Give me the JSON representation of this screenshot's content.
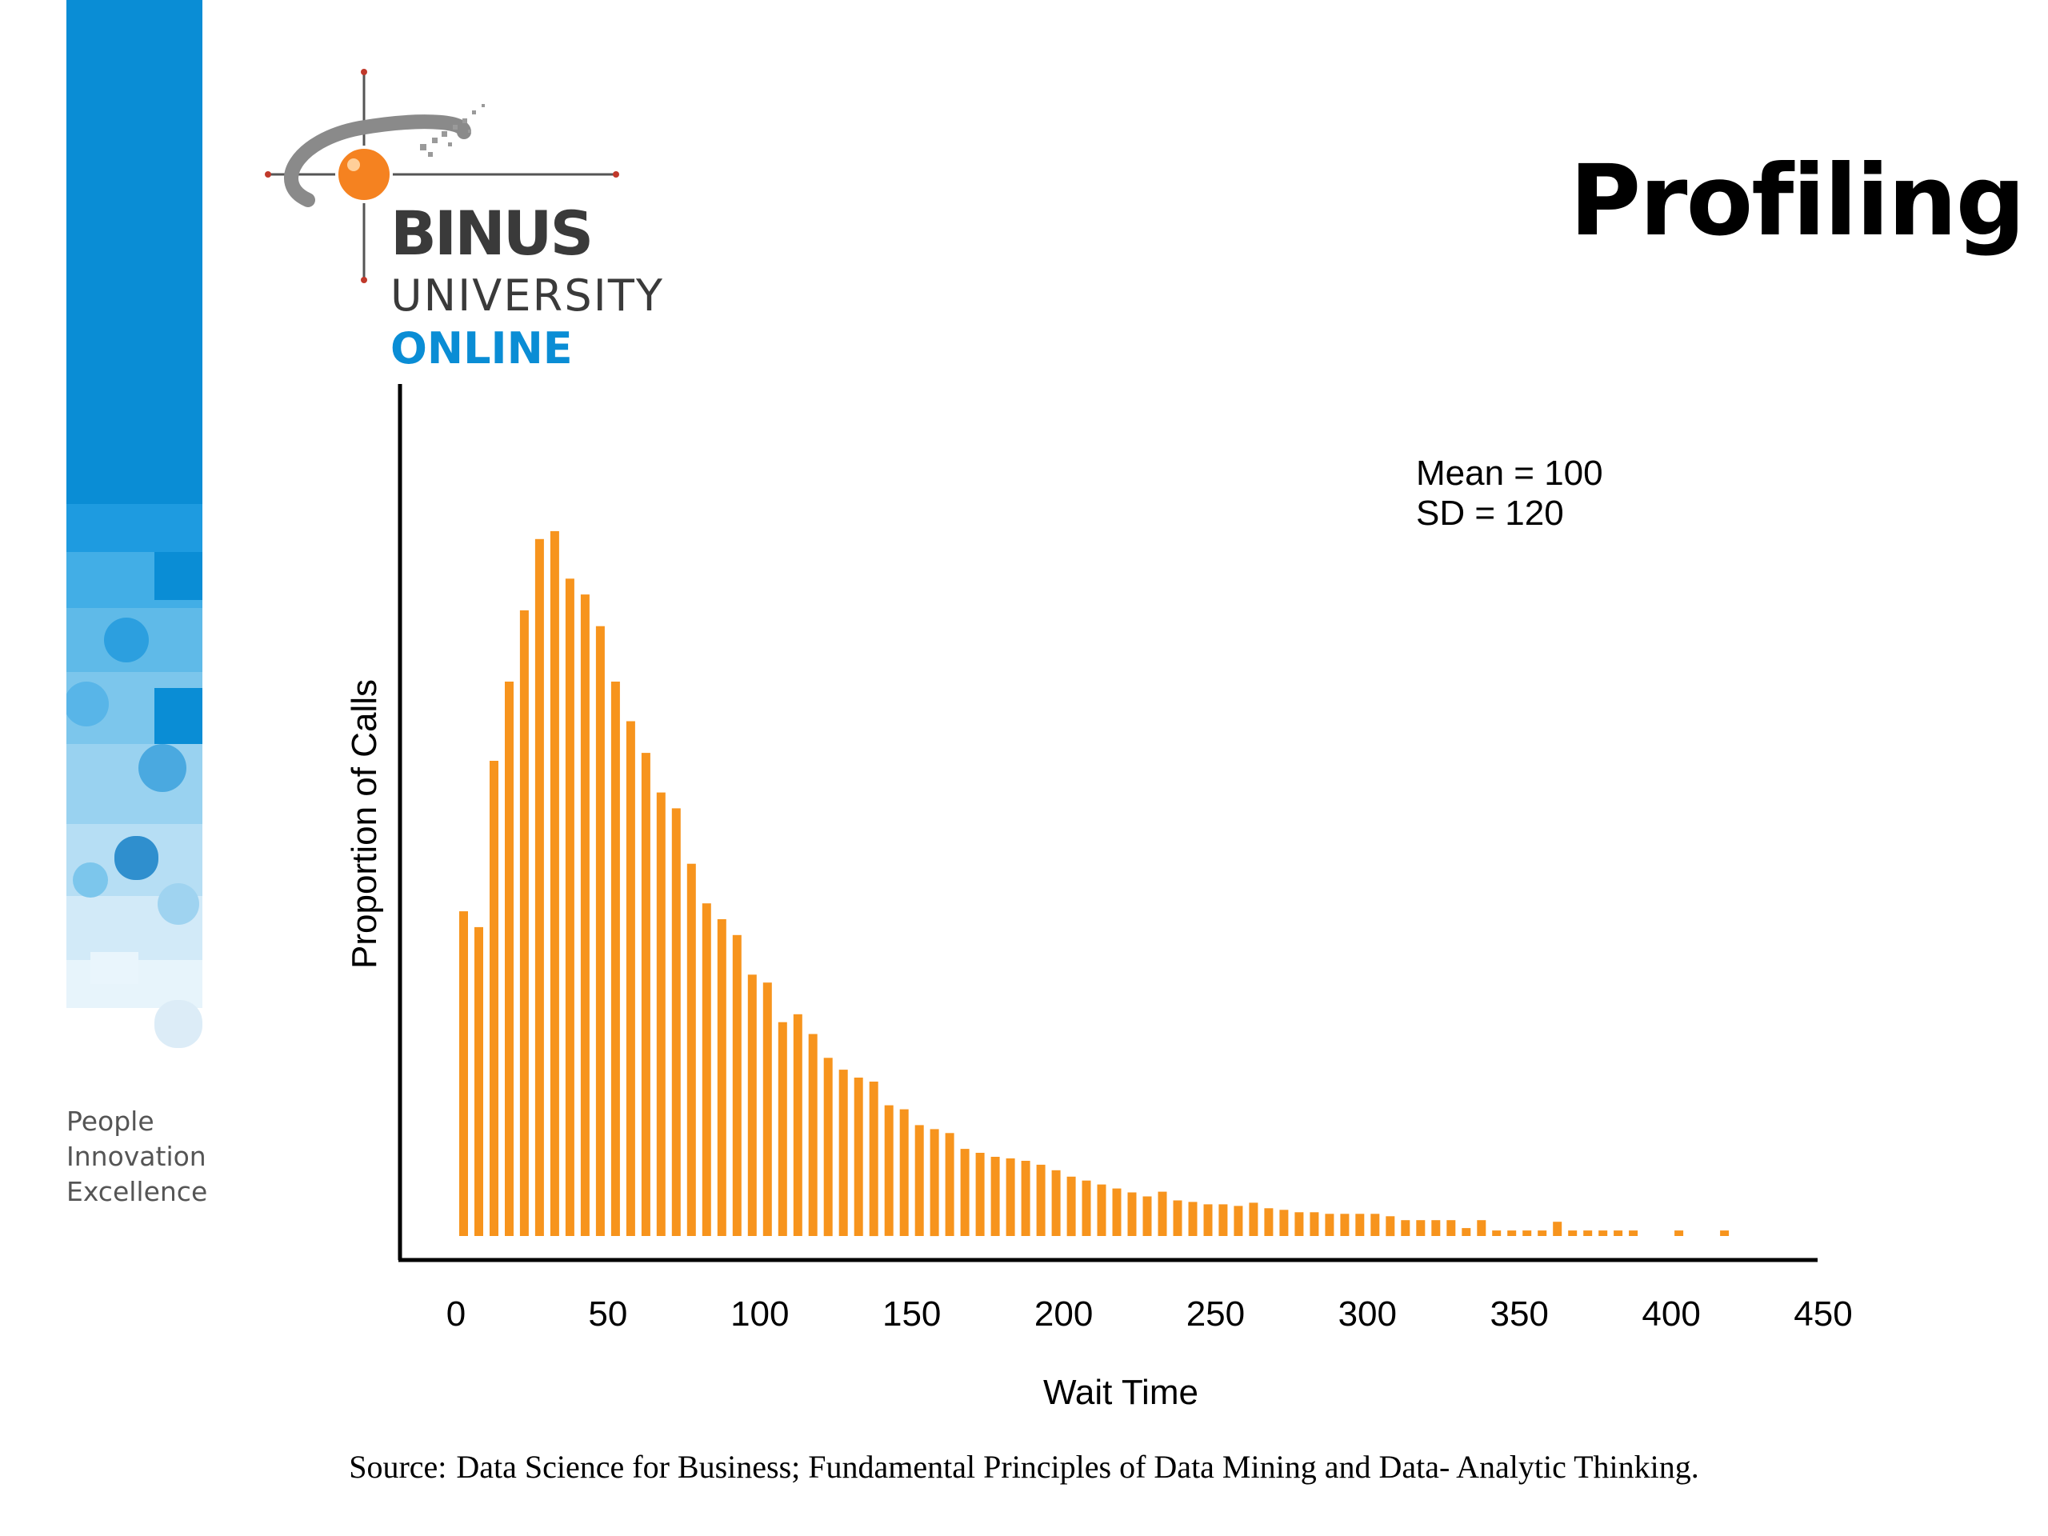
{
  "slide": {
    "title": "Profiling",
    "logo": {
      "line1": "BINUS",
      "line2": "UNIVERSITY",
      "line3": "ONLINE"
    },
    "tagline": [
      "People",
      "Innovation",
      "Excellence"
    ],
    "source_label": "Source:",
    "source_text": "Data Science for Business; Fundamental Principles of Data Mining and Data- Analytic Thinking.",
    "colors": {
      "brand_blue": "#0a8dd5",
      "bar_orange": "#f7941d",
      "logo_gray": "#3a3a3a",
      "logo_orange": "#f58220"
    }
  },
  "chart_data": {
    "type": "bar",
    "xlabel": "Wait Time",
    "ylabel": "Proportion of Calls",
    "annotation": [
      "Mean = 100",
      "SD = 120"
    ],
    "xlim": [
      0,
      450
    ],
    "xticks": [
      0,
      50,
      100,
      150,
      200,
      250,
      300,
      350,
      400,
      450
    ],
    "ylim": [
      0,
      1
    ],
    "grid": false,
    "legend": "none",
    "x": [
      2.5,
      7.5,
      12.5,
      17.5,
      22.5,
      27.5,
      32.5,
      37.5,
      42.5,
      47.5,
      52.5,
      57.5,
      62.5,
      67.5,
      72.5,
      77.5,
      82.5,
      87.5,
      92.5,
      97.5,
      102.5,
      107.5,
      112.5,
      117.5,
      122.5,
      127.5,
      132.5,
      137.5,
      142.5,
      147.5,
      152.5,
      157.5,
      162.5,
      167.5,
      172.5,
      177.5,
      182.5,
      187.5,
      192.5,
      197.5,
      202.5,
      207.5,
      212.5,
      217.5,
      222.5,
      227.5,
      232.5,
      237.5,
      242.5,
      247.5,
      252.5,
      257.5,
      262.5,
      267.5,
      272.5,
      277.5,
      282.5,
      287.5,
      292.5,
      297.5,
      302.5,
      307.5,
      312.5,
      317.5,
      322.5,
      327.5,
      332.5,
      337.5,
      342.5,
      347.5,
      352.5,
      357.5,
      362.5,
      367.5,
      372.5,
      377.5,
      382.5,
      387.5,
      402.5,
      417.5
    ],
    "values": [
      0.41,
      0.39,
      0.6,
      0.7,
      0.79,
      0.88,
      0.89,
      0.83,
      0.81,
      0.77,
      0.7,
      0.65,
      0.61,
      0.56,
      0.54,
      0.47,
      0.42,
      0.4,
      0.38,
      0.33,
      0.32,
      0.27,
      0.28,
      0.255,
      0.225,
      0.21,
      0.2,
      0.195,
      0.165,
      0.16,
      0.14,
      0.135,
      0.13,
      0.11,
      0.105,
      0.1,
      0.098,
      0.095,
      0.09,
      0.083,
      0.075,
      0.07,
      0.065,
      0.06,
      0.055,
      0.05,
      0.056,
      0.045,
      0.043,
      0.04,
      0.04,
      0.038,
      0.042,
      0.035,
      0.033,
      0.03,
      0.03,
      0.028,
      0.028,
      0.028,
      0.028,
      0.025,
      0.02,
      0.02,
      0.02,
      0.02,
      0.01,
      0.02,
      0.007,
      0.007,
      0.007,
      0.007,
      0.018,
      0.007,
      0.007,
      0.007,
      0.007,
      0.007,
      0.007,
      0.007
    ]
  }
}
